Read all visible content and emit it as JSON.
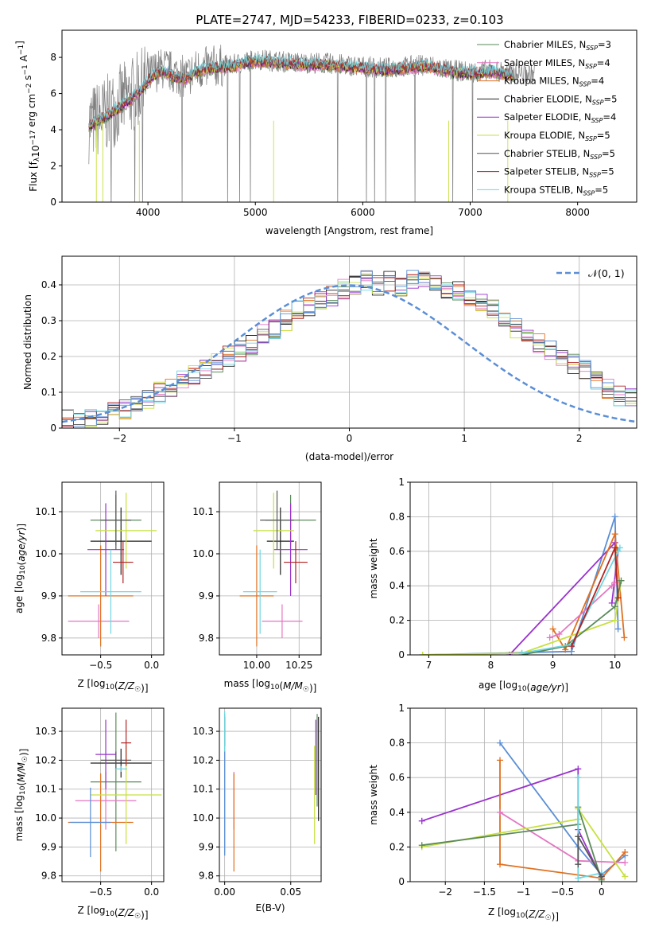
{
  "figure": {
    "title": "PLATE=2747, MJD=54233, FIBERID=0233, z=0.103"
  },
  "chart_data": [
    {
      "id": "spectrum",
      "type": "line",
      "title": "PLATE=2747, MJD=54233, FIBERID=0233, z=0.103",
      "xlabel": "wavelength [Angstrom, rest frame]",
      "ylabel": "Flux [f_λ10^-17 erg cm^-2 s^-1 A^-1]",
      "xlim": [
        3200,
        8550
      ],
      "ylim": [
        0,
        9.5
      ],
      "xticks": [
        4000,
        5000,
        6000,
        7000,
        8000
      ],
      "yticks": [
        0,
        2,
        4,
        6,
        8
      ],
      "grid": false,
      "legend_position": "right",
      "observed_color": "#7f7f7f",
      "legend": [
        {
          "label": "Chabrier MILES, N_SSP=3",
          "color": "#5a8a5a"
        },
        {
          "label": "Salpeter MILES, N_SSP=4",
          "color": "#e377c2"
        },
        {
          "label": "Kroupa MILES, N_SSP=4",
          "color": "#e07020"
        },
        {
          "label": "Chabrier ELODIE, N_SSP=5",
          "color": "#222222"
        },
        {
          "label": "Salpeter ELODIE, N_SSP=4",
          "color": "#9932cc"
        },
        {
          "label": "Kroupa ELODIE, N_SSP=5",
          "color": "#c8e040"
        },
        {
          "label": "Chabrier STELIB, N_SSP=5",
          "color": "#555555"
        },
        {
          "label": "Salpeter STELIB, N_SSP=5",
          "color": "#b22222"
        },
        {
          "label": "Kroupa STELIB, N_SSP=5",
          "color": "#6fd6e0"
        }
      ],
      "observed_continuum": {
        "x": [
          3450,
          3600,
          3750,
          3850,
          3950,
          4050,
          4150,
          4250,
          4350,
          4450,
          4600,
          4800,
          5000,
          5200,
          5400,
          5600,
          5800,
          6000,
          6200,
          6400,
          6600,
          6800,
          7000,
          7200,
          7400
        ],
        "y": [
          4.3,
          4.8,
          5.5,
          5.9,
          6.4,
          7.2,
          7.4,
          7.1,
          6.9,
          7.3,
          7.5,
          7.6,
          7.9,
          7.8,
          7.7,
          7.7,
          7.6,
          7.5,
          7.4,
          7.5,
          7.6,
          7.3,
          7.2,
          7.3,
          7.1
        ]
      },
      "model_continuum": {
        "x": [
          3450,
          3600,
          3750,
          3850,
          3950,
          4050,
          4150,
          4250,
          4350,
          4450,
          4600,
          4800,
          5000,
          5200,
          5400,
          5600,
          5800,
          6000,
          6200,
          6400,
          6600,
          6800,
          7000,
          7200,
          7400
        ],
        "y": [
          4.2,
          4.7,
          5.3,
          5.7,
          6.3,
          7.0,
          7.2,
          6.9,
          6.8,
          7.2,
          7.4,
          7.5,
          7.8,
          7.7,
          7.6,
          7.6,
          7.5,
          7.4,
          7.3,
          7.4,
          7.5,
          7.2,
          7.1,
          7.2,
          7.0
        ]
      },
      "observed_end_x": 7600,
      "model_end_x": 7400
    },
    {
      "id": "residuals",
      "type": "bar",
      "xlabel": "(data-model)/error",
      "ylabel": "Normed distribution",
      "xlim": [
        -2.5,
        2.5
      ],
      "ylim": [
        0,
        0.48
      ],
      "xticks": [
        -2,
        -1,
        0,
        1,
        2
      ],
      "yticks": [
        0.0,
        0.1,
        0.2,
        0.3,
        0.4
      ],
      "grid": true,
      "legend_position": "top-right",
      "legend": [
        {
          "label": "𝒩(0, 1)",
          "color": "#5b8ed6"
        }
      ],
      "bin_edges_start": -2.5,
      "bin_width": 0.1,
      "base_histogram": [
        0.025,
        0.022,
        0.028,
        0.035,
        0.045,
        0.055,
        0.07,
        0.085,
        0.1,
        0.115,
        0.13,
        0.15,
        0.165,
        0.18,
        0.2,
        0.215,
        0.23,
        0.26,
        0.28,
        0.3,
        0.33,
        0.34,
        0.36,
        0.37,
        0.39,
        0.4,
        0.41,
        0.4,
        0.41,
        0.39,
        0.42,
        0.41,
        0.4,
        0.39,
        0.38,
        0.36,
        0.35,
        0.33,
        0.31,
        0.28,
        0.26,
        0.24,
        0.22,
        0.2,
        0.18,
        0.16,
        0.13,
        0.11,
        0.09,
        0.08,
        0.065
      ],
      "series_colors": [
        "#5a8a5a",
        "#e377c2",
        "#e07020",
        "#222222",
        "#9932cc",
        "#c8e040",
        "#555555",
        "#b22222",
        "#6fd6e0",
        "#5b8ed6"
      ]
    },
    {
      "id": "age-vs-Z",
      "type": "scatter",
      "xlabel": "Z [log10(Z/Z☉)]",
      "ylabel": "age  [log10(age/yr)]",
      "xlim": [
        -0.88,
        0.12
      ],
      "ylim": [
        9.76,
        10.17
      ],
      "xticks": [
        -0.5,
        0.0
      ],
      "xticklabels": [
        "−0.5",
        "0.0"
      ],
      "yticks": [
        9.8,
        9.9,
        10.0,
        10.1
      ],
      "yticklabels": [
        "9.8",
        "9.9",
        "10.0",
        "10.1"
      ],
      "grid": true,
      "points": [
        {
          "x": -0.35,
          "y": 10.08,
          "xerr": 0.25,
          "yerr": 0.06,
          "color": "#5a8a5a"
        },
        {
          "x": -0.52,
          "y": 9.84,
          "xerr": 0.3,
          "yerr": 0.04,
          "color": "#e377c2"
        },
        {
          "x": -0.5,
          "y": 9.9,
          "xerr": 0.32,
          "yerr": 0.12,
          "color": "#e07020"
        },
        {
          "x": -0.3,
          "y": 10.03,
          "xerr": 0.3,
          "yerr": 0.08,
          "color": "#222222"
        },
        {
          "x": -0.45,
          "y": 10.01,
          "xerr": 0.18,
          "yerr": 0.11,
          "color": "#9932cc"
        },
        {
          "x": -0.25,
          "y": 10.055,
          "xerr": 0.3,
          "yerr": 0.09,
          "color": "#c8e040"
        },
        {
          "x": -0.35,
          "y": 10.08,
          "xerr": 0.15,
          "yerr": 0.07,
          "color": "#555555"
        },
        {
          "x": -0.28,
          "y": 9.98,
          "xerr": 0.1,
          "yerr": 0.05,
          "color": "#b22222"
        },
        {
          "x": -0.4,
          "y": 9.91,
          "xerr": 0.3,
          "yerr": 0.1,
          "color": "#6fd6e0"
        }
      ]
    },
    {
      "id": "age-vs-mass",
      "type": "scatter",
      "xlabel": "mass [log10(M/M☉)]",
      "ylabel": "",
      "xlim": [
        9.78,
        10.38
      ],
      "ylim": [
        9.76,
        10.17
      ],
      "xticks": [
        10.0,
        10.25
      ],
      "xticklabels": [
        "10.00",
        "10.25"
      ],
      "yticks": [
        9.8,
        9.9,
        10.0,
        10.1
      ],
      "yticklabels": [
        "9.8",
        "9.9",
        "10.0",
        "10.1"
      ],
      "grid": true,
      "points": [
        {
          "x": 10.2,
          "y": 10.08,
          "xerr": 0.15,
          "yerr": 0.06,
          "color": "#5a8a5a"
        },
        {
          "x": 10.15,
          "y": 9.84,
          "xerr": 0.12,
          "yerr": 0.04,
          "color": "#e377c2"
        },
        {
          "x": 10.0,
          "y": 9.9,
          "xerr": 0.1,
          "yerr": 0.12,
          "color": "#e07020"
        },
        {
          "x": 10.14,
          "y": 10.03,
          "xerr": 0.08,
          "yerr": 0.08,
          "color": "#222222"
        },
        {
          "x": 10.2,
          "y": 10.01,
          "xerr": 0.1,
          "yerr": 0.11,
          "color": "#9932cc"
        },
        {
          "x": 10.1,
          "y": 10.055,
          "xerr": 0.12,
          "yerr": 0.09,
          "color": "#c8e040"
        },
        {
          "x": 10.12,
          "y": 10.08,
          "xerr": 0.1,
          "yerr": 0.07,
          "color": "#555555"
        },
        {
          "x": 10.23,
          "y": 9.98,
          "xerr": 0.07,
          "yerr": 0.05,
          "color": "#b22222"
        },
        {
          "x": 10.02,
          "y": 9.91,
          "xerr": 0.1,
          "yerr": 0.1,
          "color": "#6fd6e0"
        }
      ]
    },
    {
      "id": "weight-vs-age",
      "type": "line",
      "xlabel": "age  [log10(age/yr)]",
      "ylabel": "mass weight",
      "xlim": [
        6.7,
        10.35
      ],
      "ylim": [
        0,
        1.0
      ],
      "xticks": [
        7,
        8,
        9,
        10
      ],
      "yticks": [
        0.0,
        0.2,
        0.4,
        0.6,
        0.8,
        1.0
      ],
      "grid": true,
      "series": [
        {
          "color": "#5b8ed6",
          "x": [
            6.9,
            9.3,
            10.0,
            10.05
          ],
          "y": [
            0.0,
            0.02,
            0.8,
            0.15
          ]
        },
        {
          "color": "#9932cc",
          "x": [
            8.3,
            10.0,
            10.05,
            9.95
          ],
          "y": [
            0.0,
            0.65,
            0.6,
            0.3
          ]
        },
        {
          "color": "#e07020",
          "x": [
            9.0,
            9.2,
            10.0,
            10.15
          ],
          "y": [
            0.15,
            0.03,
            0.7,
            0.1
          ]
        },
        {
          "color": "#e377c2",
          "x": [
            8.95,
            9.1,
            9.95,
            10.0
          ],
          "y": [
            0.1,
            0.12,
            0.4,
            0.42
          ]
        },
        {
          "color": "#c8e040",
          "x": [
            6.9,
            8.5,
            10.0,
            10.1
          ],
          "y": [
            0.0,
            0.01,
            0.2,
            0.43
          ]
        },
        {
          "color": "#5a8a5a",
          "x": [
            8.5,
            9.2,
            10.0,
            10.1
          ],
          "y": [
            0.0,
            0.05,
            0.28,
            0.43
          ]
        },
        {
          "color": "#6fd6e0",
          "x": [
            8.5,
            9.3,
            10.05,
            10.08
          ],
          "y": [
            0.01,
            0.06,
            0.6,
            0.62
          ]
        },
        {
          "color": "#b22222",
          "x": [
            9.3,
            10.0,
            10.05
          ],
          "y": [
            0.05,
            0.62,
            0.33
          ]
        }
      ]
    },
    {
      "id": "mass-vs-Z",
      "type": "scatter",
      "xlabel": "Z [log10(Z/Z☉)]",
      "ylabel": "mass [log10(M/M☉)]",
      "xlim": [
        -0.88,
        0.12
      ],
      "ylim": [
        9.78,
        10.38
      ],
      "xticks": [
        -0.5,
        0.0
      ],
      "xticklabels": [
        "−0.5",
        "0.0"
      ],
      "yticks": [
        9.8,
        9.9,
        10.0,
        10.1,
        10.2,
        10.3
      ],
      "yticklabels": [
        "9.8",
        "9.9",
        "10.0",
        "10.1",
        "10.2",
        "10.3"
      ],
      "grid": true,
      "points": [
        {
          "x": -0.35,
          "y": 10.125,
          "xerr": 0.25,
          "yerr": 0.24,
          "color": "#5a8a5a"
        },
        {
          "x": -0.45,
          "y": 10.06,
          "xerr": 0.3,
          "yerr": 0.1,
          "color": "#e377c2"
        },
        {
          "x": -0.5,
          "y": 9.985,
          "xerr": 0.32,
          "yerr": 0.17,
          "color": "#e07020"
        },
        {
          "x": -0.3,
          "y": 10.19,
          "xerr": 0.3,
          "yerr": 0.05,
          "color": "#222222"
        },
        {
          "x": -0.45,
          "y": 10.22,
          "xerr": 0.1,
          "yerr": 0.12,
          "color": "#9932cc"
        },
        {
          "x": -0.25,
          "y": 10.08,
          "xerr": 0.35,
          "yerr": 0.17,
          "color": "#c8e040"
        },
        {
          "x": -0.35,
          "y": 10.2,
          "xerr": 0.15,
          "yerr": 0.03,
          "color": "#555555"
        },
        {
          "x": -0.25,
          "y": 10.26,
          "xerr": 0.05,
          "yerr": 0.08,
          "color": "#b22222"
        },
        {
          "x": -0.3,
          "y": 10.17,
          "xerr": 0.06,
          "yerr": 0.01,
          "color": "#6fd6e0"
        },
        {
          "x": -0.6,
          "y": 9.985,
          "xerr": 0.2,
          "yerr": 0.12,
          "color": "#5b8ed6"
        }
      ]
    },
    {
      "id": "mass-vs-ebv",
      "type": "scatter",
      "xlabel": "E(B-V)",
      "ylabel": "",
      "xlim": [
        -0.004,
        0.073
      ],
      "ylim": [
        9.78,
        10.38
      ],
      "xticks": [
        0.0,
        0.05
      ],
      "xticklabels": [
        "0.00",
        "0.05"
      ],
      "yticks": [
        9.8,
        9.9,
        10.0,
        10.1,
        10.2,
        10.3
      ],
      "yticklabels": [
        "9.8",
        "9.9",
        "10.0",
        "10.1",
        "10.2",
        "10.3"
      ],
      "grid": true,
      "points": [
        {
          "x": 0.0,
          "y": 10.12,
          "yerr": 0.24,
          "color": "#5a8a5a"
        },
        {
          "x": 0.007,
          "y": 10.06,
          "yerr": 0.1,
          "color": "#e377c2"
        },
        {
          "x": 0.007,
          "y": 9.985,
          "yerr": 0.17,
          "color": "#e07020"
        },
        {
          "x": 0.0,
          "y": 10.3,
          "yerr": 0.05,
          "color": "#b22222"
        },
        {
          "x": 0.0,
          "y": 10.12,
          "yerr": 0.25,
          "color": "#6fd6e0"
        },
        {
          "x": 0.0,
          "y": 10.05,
          "yerr": 0.18,
          "color": "#5b8ed6"
        },
        {
          "x": 0.068,
          "y": 10.08,
          "yerr": 0.17,
          "color": "#c8e040"
        },
        {
          "x": 0.07,
          "y": 10.2,
          "yerr": 0.16,
          "color": "#5a8a5a"
        },
        {
          "x": 0.069,
          "y": 10.21,
          "yerr": 0.13,
          "color": "#9932cc"
        },
        {
          "x": 0.071,
          "y": 10.17,
          "yerr": 0.18,
          "color": "#222222"
        }
      ]
    },
    {
      "id": "weight-vs-Z",
      "type": "line",
      "xlabel": "Z [log10(Z/Z☉)]",
      "ylabel": "mass weight",
      "xlim": [
        -2.45,
        0.45
      ],
      "ylim": [
        0,
        1.0
      ],
      "xticks": [
        -2.0,
        -1.5,
        -1.0,
        -0.5,
        0.0
      ],
      "yticks": [
        0.0,
        0.2,
        0.4,
        0.6,
        0.8,
        1.0
      ],
      "grid": true,
      "series": [
        {
          "color": "#5b8ed6",
          "x": [
            -1.3,
            -0.3,
            0.0,
            0.3
          ],
          "y": [
            0.8,
            0.2,
            0.04,
            0.15
          ]
        },
        {
          "color": "#9932cc",
          "x": [
            -2.3,
            -0.3,
            -0.3,
            0.0
          ],
          "y": [
            0.35,
            0.65,
            0.3,
            0.02
          ]
        },
        {
          "color": "#e07020",
          "x": [
            -1.3,
            -1.3,
            0.0,
            0.3
          ],
          "y": [
            0.7,
            0.1,
            0.02,
            0.17
          ]
        },
        {
          "color": "#e377c2",
          "x": [
            -1.3,
            -0.3,
            0.3
          ],
          "y": [
            0.4,
            0.12,
            0.11
          ]
        },
        {
          "color": "#c8e040",
          "x": [
            -2.3,
            -0.3,
            -0.3,
            0.3
          ],
          "y": [
            0.2,
            0.36,
            0.42,
            0.03
          ]
        },
        {
          "color": "#5a8a5a",
          "x": [
            -2.3,
            -0.3,
            -0.3,
            0.0
          ],
          "y": [
            0.21,
            0.33,
            0.43,
            0.01
          ]
        },
        {
          "color": "#6fd6e0",
          "x": [
            -0.3,
            -0.3,
            0.0
          ],
          "y": [
            0.6,
            0.02,
            0.05
          ]
        },
        {
          "color": "#555555",
          "x": [
            -0.3,
            -0.3,
            0.0
          ],
          "y": [
            0.1,
            0.26,
            0.03
          ]
        }
      ]
    }
  ]
}
